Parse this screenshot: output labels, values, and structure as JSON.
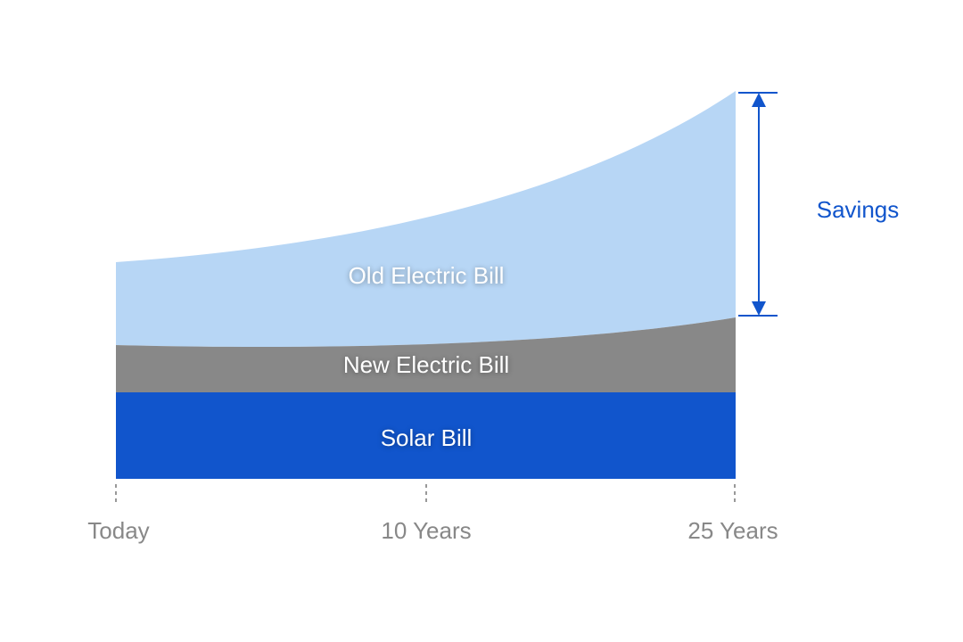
{
  "areas": [
    {
      "label": "Old Electric Bill"
    },
    {
      "label": "New Electric Bill"
    },
    {
      "label": "Solar Bill"
    }
  ],
  "annotation": {
    "label": "Savings"
  },
  "x_labels": [
    "Today",
    "10 Years",
    "25 Years"
  ]
}
